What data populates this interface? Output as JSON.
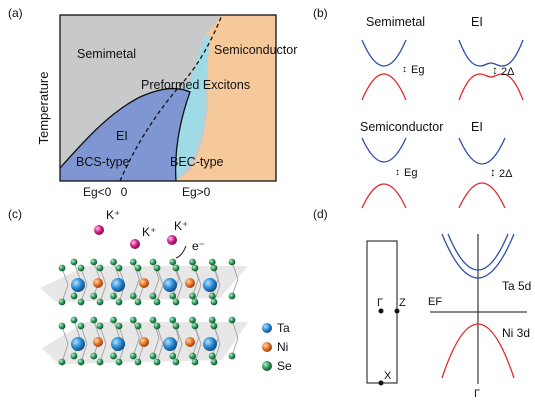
{
  "panel_a": {
    "label": "(a)",
    "y_axis_label": "Temperature",
    "regions": {
      "semimetal": "Semimetal",
      "semiconductor": "Semiconductor",
      "preformed": "Preformed Excitons",
      "ei": "EI",
      "bcs": "BCS-type",
      "bec": "BEC-type"
    },
    "ticks": {
      "left": "Eg<0",
      "zero": "0",
      "right": "Eg>0"
    },
    "colors": {
      "semimetal": "#c8c9cb",
      "semiconductor": "#f6c99a",
      "preformed": "#9edbe7",
      "ei": "#7f96d3"
    }
  },
  "panel_b": {
    "label": "(b)",
    "titles": {
      "top_left": "Semimetal",
      "top_right": "EI",
      "bottom_left": "Semiconductor",
      "bottom_right": "EI"
    },
    "gap_labels": {
      "eg1": "Eg",
      "delta1": "2Δ",
      "eg2": "Eg",
      "delta2": "2Δ"
    },
    "colors": {
      "conduction": "#2b4fa8",
      "valence": "#e02a2a"
    }
  },
  "panel_c": {
    "label": "(c)",
    "ions": [
      "K⁺",
      "K⁺",
      "K⁺"
    ],
    "electron": "e⁻",
    "legend": [
      {
        "name": "Ta",
        "color": "#2b8fd6"
      },
      {
        "name": "Ni",
        "color": "#e8782a"
      },
      {
        "name": "Se",
        "color": "#2e9a5c"
      }
    ]
  },
  "panel_d": {
    "label": "(d)",
    "bz_points": {
      "gamma": "Γ",
      "z": "Z",
      "x": "X"
    },
    "fermi_label": "EF",
    "band_labels": {
      "ta": "Ta 5d",
      "ni": "Ni 3d"
    },
    "axis_point": "Γ"
  }
}
